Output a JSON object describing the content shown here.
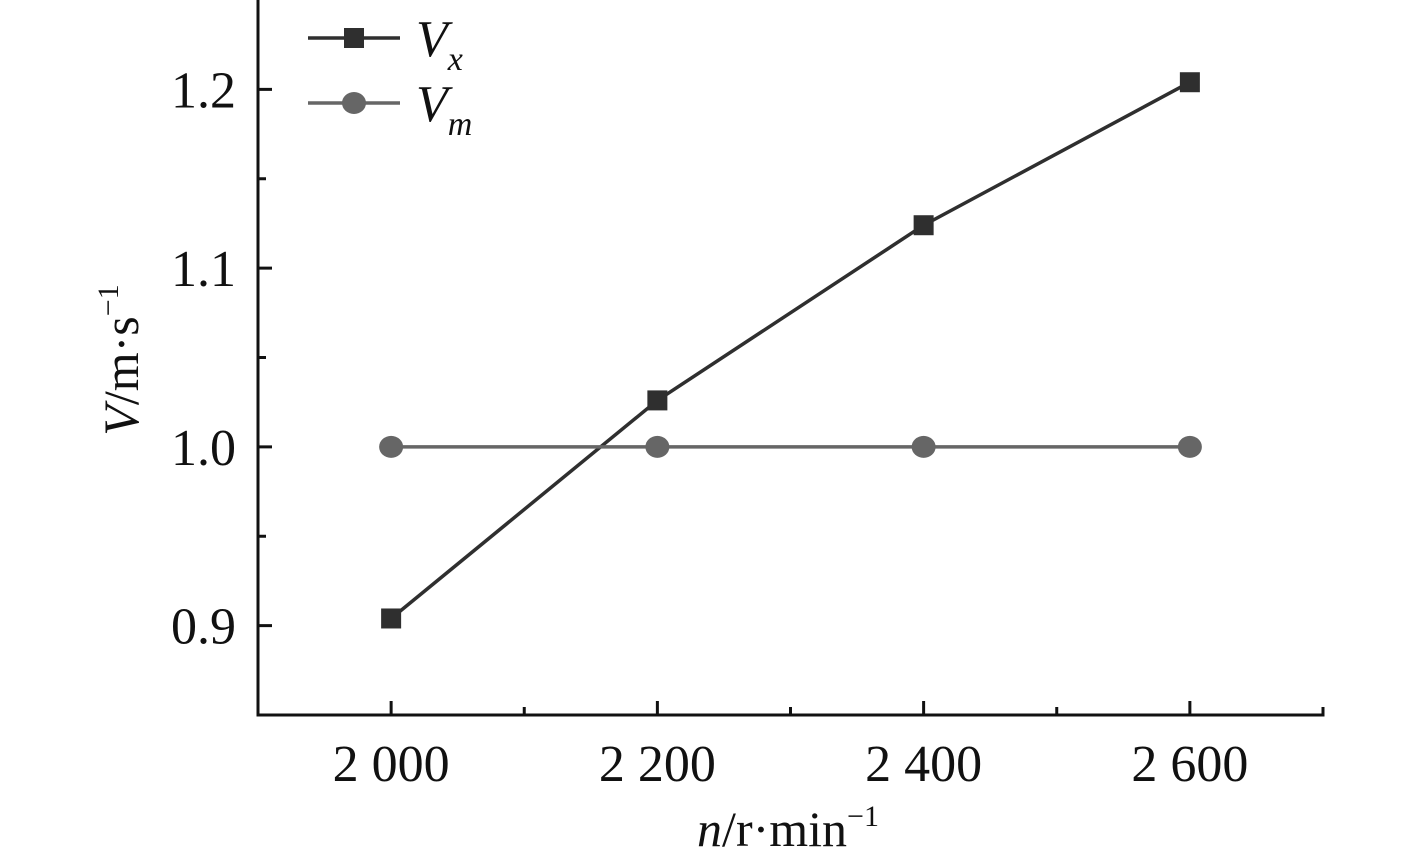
{
  "chart_data": {
    "type": "line",
    "x": [
      2000,
      2200,
      2400,
      2600
    ],
    "x_tick_labels": [
      "2 000",
      "2 200",
      "2 400",
      "2 600"
    ],
    "y_tick_labels": [
      "0.9",
      "1.0",
      "1.1",
      "1.2"
    ],
    "y_ticks": [
      0.9,
      1.0,
      1.1,
      1.2
    ],
    "xlim": [
      1900,
      2700
    ],
    "ylim": [
      0.85,
      1.25
    ],
    "xlabel": {
      "var": "n",
      "unit": "/r·min",
      "exp": "−1"
    },
    "ylabel": {
      "var": "V",
      "unit": "/m·s",
      "exp": "−1"
    },
    "grid": false,
    "legend_position": "top-left",
    "series": [
      {
        "name": "V",
        "subscript": "x",
        "marker": "square",
        "color": "#2f2f2f",
        "values": [
          0.904,
          1.026,
          1.124,
          1.204
        ]
      },
      {
        "name": "V",
        "subscript": "m",
        "marker": "circle",
        "color": "#666666",
        "values": [
          1.0,
          1.0,
          1.0,
          1.0
        ]
      }
    ]
  }
}
